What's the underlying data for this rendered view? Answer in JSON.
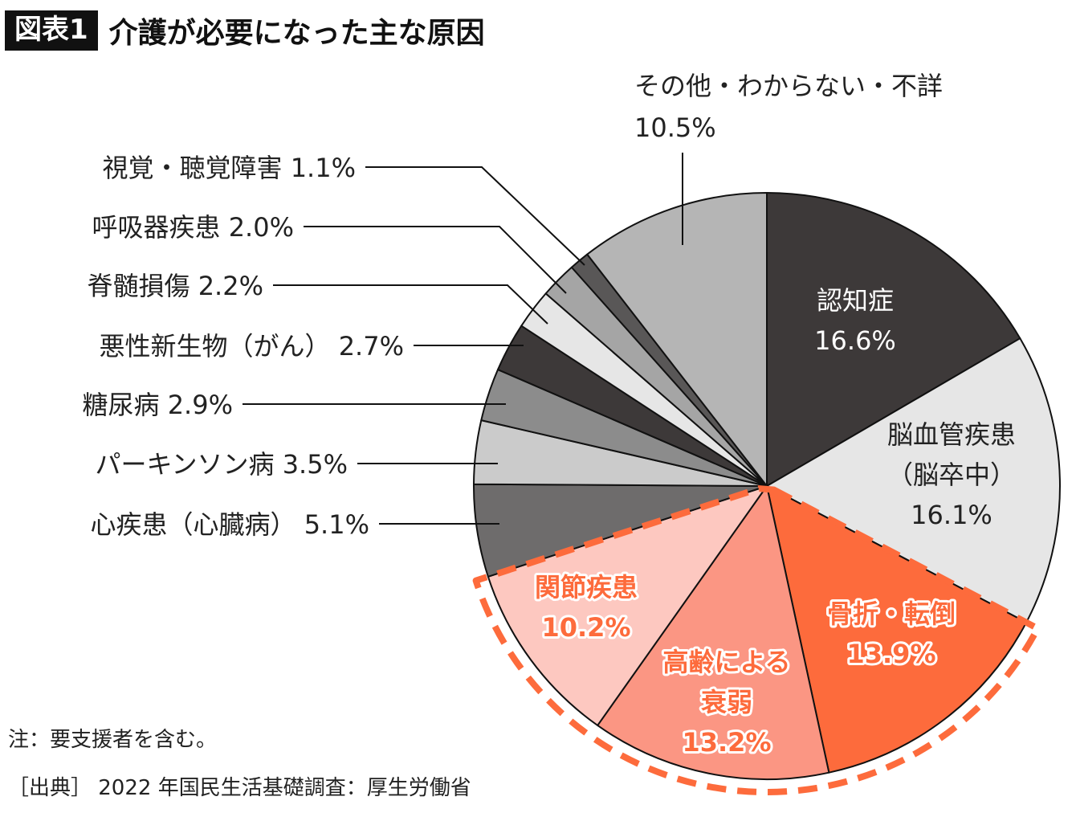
{
  "header": {
    "badge": "図表1",
    "title": "介護が必要になった主な原因"
  },
  "notes": {
    "note": "注：要支援者を含む。",
    "source": "［出典］ 2022 年国民生活基礎調査：厚生労働省"
  },
  "chart_data": {
    "type": "pie",
    "title": "介護が必要になった主な原因",
    "unit": "%",
    "start": "12 o'clock, clockwise",
    "highlight_group": "骨折・転倒, 高齢による衰弱, 関節疾患 (orange dashed outline)",
    "slices": [
      {
        "label": "認知症",
        "value": 16.6,
        "display": "16.6%",
        "color": "#3d3939",
        "text_color": "#ffffff",
        "label_pos": "inside",
        "highlight": false
      },
      {
        "label": "脳血管疾患（脳卒中）",
        "label_lines": [
          "脳血管疾患",
          "（脳卒中）"
        ],
        "value": 16.1,
        "display": "16.1%",
        "color": "#e6e6e6",
        "text_color": "#222222",
        "label_pos": "inside",
        "highlight": false
      },
      {
        "label": "骨折・転倒",
        "value": 13.9,
        "display": "13.9%",
        "color": "#fd6b3c",
        "text_color": "#fd6b3c",
        "label_pos": "inside",
        "highlight": true
      },
      {
        "label": "高齢による衰弱",
        "label_lines": [
          "高齢による",
          "衰弱"
        ],
        "value": 13.2,
        "display": "13.2%",
        "color": "#fb9683",
        "text_color": "#fd6b3c",
        "label_pos": "inside",
        "highlight": true
      },
      {
        "label": "関節疾患",
        "value": 10.2,
        "display": "10.2%",
        "color": "#fdc8c0",
        "text_color": "#fd6b3c",
        "label_pos": "inside",
        "highlight": true
      },
      {
        "label": "心疾患（心臓病）",
        "value": 5.1,
        "display": "5.1%",
        "color": "#6e6c6c",
        "label_pos": "outside-left",
        "highlight": false
      },
      {
        "label": "パーキンソン病",
        "value": 3.5,
        "display": "3.5%",
        "color": "#cbcbcb",
        "label_pos": "outside-left",
        "highlight": false
      },
      {
        "label": "糖尿病",
        "value": 2.9,
        "display": "2.9%",
        "color": "#8c8c8c",
        "label_pos": "outside-left",
        "highlight": false
      },
      {
        "label": "悪性新生物（がん）",
        "value": 2.7,
        "display": "2.7%",
        "color": "#3d3939",
        "label_pos": "outside-left",
        "highlight": false
      },
      {
        "label": "脊髄損傷",
        "value": 2.2,
        "display": "2.2%",
        "color": "#e6e6e6",
        "label_pos": "outside-left",
        "highlight": false
      },
      {
        "label": "呼吸器疾患",
        "value": 2.0,
        "display": "2.0%",
        "color": "#a5a5a5",
        "label_pos": "outside-left",
        "highlight": false
      },
      {
        "label": "視覚・聴覚障害",
        "value": 1.1,
        "display": "1.1%",
        "color": "#595757",
        "label_pos": "outside-left",
        "highlight": false
      },
      {
        "label": "その他・わからない・不詳",
        "value": 10.5,
        "display": "10.5%",
        "color": "#b5b5b5",
        "label_pos": "outside-top",
        "highlight": false
      }
    ],
    "accent_color": "#fd6b3c"
  }
}
